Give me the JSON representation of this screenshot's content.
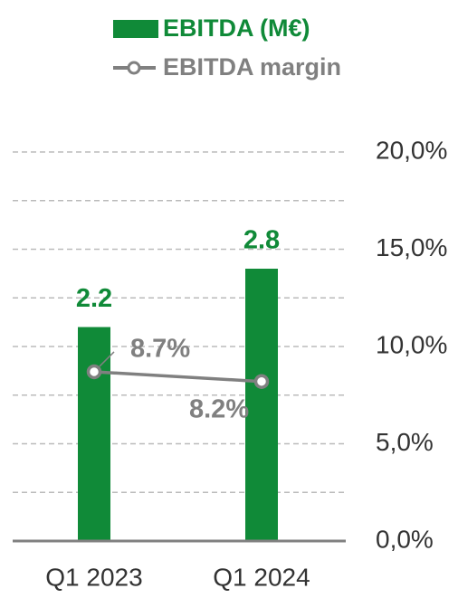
{
  "chart_data": {
    "type": "bar",
    "categories": [
      "Q1 2023",
      "Q1 2024"
    ],
    "series": [
      {
        "name": "EBITDA (M€)",
        "color": "#108a38",
        "values": [
          2.2,
          2.8
        ]
      },
      {
        "name": "EBITDA margin",
        "color": "#808080",
        "type": "line",
        "axis": "y2",
        "values": [
          8.7,
          8.2
        ],
        "value_labels": [
          "8.7%",
          "8.2%"
        ]
      }
    ],
    "ylim": [
      0,
      4
    ],
    "yticks": [
      0.5,
      1,
      1.5,
      2,
      2.5,
      3,
      3.5,
      4
    ],
    "yaxis_visible": false,
    "y2lim": [
      0,
      20
    ],
    "y2ticks": [
      {
        "value": 0,
        "label": "0,0%"
      },
      {
        "value": 5,
        "label": "5,0%"
      },
      {
        "value": 10,
        "label": "10,0%"
      },
      {
        "value": 15,
        "label": "15,0%"
      },
      {
        "value": 20,
        "label": "20,0%"
      }
    ],
    "grid": true,
    "legend": "top"
  }
}
